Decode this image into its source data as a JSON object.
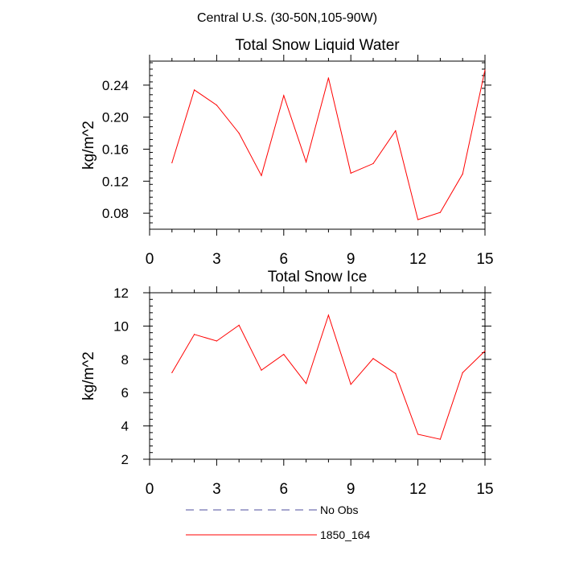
{
  "figure": {
    "suptitle": "Central U.S. (30-50N,105-90W)"
  },
  "colors": {
    "series_line": "#ff0000",
    "obs_line": "#4d4d9e",
    "axis": "#000000"
  },
  "legend": {
    "position": "bottom-left",
    "items": [
      {
        "label": "No Obs",
        "style": "dashed",
        "color": "#4d4d9e"
      },
      {
        "label": "1850_164",
        "style": "solid",
        "color": "#ff0000"
      }
    ]
  },
  "chart_data": [
    {
      "type": "line",
      "title": "Total Snow Liquid Water",
      "xlabel": "",
      "ylabel": "kg/m^2",
      "xlim": [
        0,
        15
      ],
      "ylim": [
        0.06,
        0.27
      ],
      "xticks": [
        0,
        3,
        6,
        9,
        12,
        15
      ],
      "yticks": [
        0.08,
        0.12,
        0.16,
        0.2,
        0.24
      ],
      "ytick_labels": [
        "0.08",
        "0.12",
        "0.16",
        "0.20",
        "0.24"
      ],
      "grid": false,
      "series": [
        {
          "name": "1850_164",
          "color": "#ff0000",
          "x": [
            1,
            2,
            3,
            4,
            5,
            6,
            7,
            8,
            9,
            10,
            11,
            12,
            13,
            14,
            15
          ],
          "y": [
            0.143,
            0.234,
            0.215,
            0.18,
            0.127,
            0.227,
            0.144,
            0.249,
            0.13,
            0.142,
            0.183,
            0.072,
            0.081,
            0.129,
            0.259
          ]
        }
      ]
    },
    {
      "type": "line",
      "title": "Total Snow Ice",
      "xlabel": "",
      "ylabel": "kg/m^2",
      "xlim": [
        0,
        15
      ],
      "ylim": [
        2,
        12
      ],
      "xticks": [
        0,
        3,
        6,
        9,
        12,
        15
      ],
      "yticks": [
        2,
        4,
        6,
        8,
        10,
        12
      ],
      "ytick_labels": [
        "2",
        "4",
        "6",
        "8",
        "10",
        "12"
      ],
      "grid": false,
      "series": [
        {
          "name": "1850_164",
          "color": "#ff0000",
          "x": [
            1,
            2,
            3,
            4,
            5,
            6,
            7,
            8,
            9,
            10,
            11,
            12,
            13,
            14,
            15
          ],
          "y": [
            7.2,
            9.5,
            9.1,
            10.05,
            7.35,
            8.3,
            6.55,
            10.65,
            6.5,
            8.05,
            7.15,
            3.5,
            3.2,
            7.2,
            8.5
          ]
        }
      ]
    }
  ]
}
